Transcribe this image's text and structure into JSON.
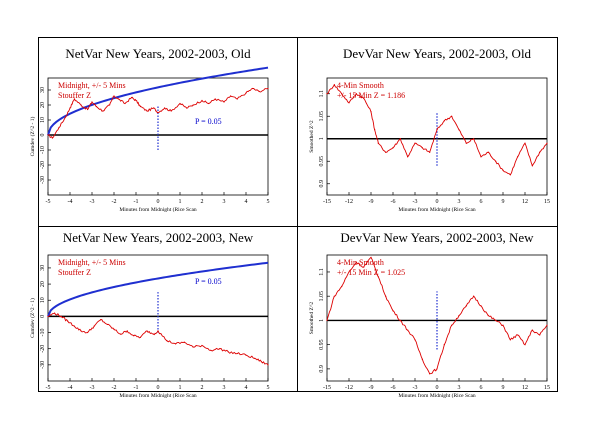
{
  "colors": {
    "data": "#dd0000",
    "envelope": "#1f2fd0",
    "marker": "#1f2fd0",
    "baseline": "#000000",
    "annotation_red": "#cc0000",
    "annotation_blue": "#0000cc"
  },
  "chart_data": [
    {
      "type": "line",
      "title": "NetVar New Years, 2002-2003, Old",
      "xlabel": "Minutes from Midnight (Rice Scan",
      "ylabel": "Cumdev (Z^2 - 1)",
      "xlim": [
        -5,
        5
      ],
      "ylim": [
        -40,
        38
      ],
      "xticks": [
        -5,
        -4,
        -3,
        -2,
        -1,
        0,
        1,
        2,
        3,
        4,
        5
      ],
      "yticks": [
        -30,
        -20,
        -10,
        0,
        10,
        20,
        30
      ],
      "annotations": [
        "Midnight, +/- 5 Mins",
        "Stouffer Z"
      ],
      "p_label": "P = 0.05",
      "envelope_coef": 14.2,
      "midnight_marker": [
        -10,
        20
      ],
      "series": [
        {
          "x": [
            -5,
            -4.8,
            -4.5,
            -4.2,
            -4,
            -3.8,
            -3.5,
            -3.2,
            -3,
            -2.8,
            -2.5,
            -2.2,
            -2,
            -1.8,
            -1.5,
            -1.2,
            -1,
            -0.8,
            -0.5,
            -0.2,
            0,
            0.3,
            0.6,
            1,
            1.3,
            1.6,
            2,
            2.3,
            2.6,
            3,
            3.3,
            3.6,
            4,
            4.3,
            4.6,
            5
          ],
          "values": [
            0,
            -2,
            5,
            12,
            18,
            24,
            20,
            17,
            22,
            19,
            16,
            20,
            26,
            24,
            21,
            25,
            23,
            19,
            16,
            18,
            15,
            18,
            16,
            21,
            18,
            20,
            23,
            21,
            24,
            22,
            26,
            24,
            28,
            31,
            29,
            31
          ]
        }
      ]
    },
    {
      "type": "line",
      "title": "DevVar New Years, 2002-2003, Old",
      "xlabel": "Minutes from Midnight (Rice Scan",
      "ylabel": "Smoothed Z^2",
      "xlim": [
        -15,
        15
      ],
      "ylim": [
        0.875,
        1.135
      ],
      "xticks": [
        -15,
        -12,
        -9,
        -6,
        -3,
        0,
        3,
        6,
        9,
        12,
        15
      ],
      "yticks": [
        0.9,
        0.95,
        1,
        1.05,
        1.1
      ],
      "annotations": [
        "4-Min Smooth",
        "+/- 15 Min Z = 1.186"
      ],
      "baseline": 1,
      "midnight_marker": [
        0.94,
        1.06
      ],
      "series": [
        {
          "x": [
            -15,
            -14,
            -13,
            -12,
            -11,
            -10,
            -9,
            -8.5,
            -8,
            -7,
            -6,
            -5,
            -4,
            -3,
            -2,
            -1,
            0,
            1,
            2,
            3,
            4,
            5,
            6,
            7,
            8,
            9,
            10,
            11,
            12,
            13,
            14,
            15
          ],
          "values": [
            1.1,
            1.12,
            1.1,
            1.08,
            1.1,
            1.09,
            1.06,
            1.02,
            0.99,
            0.97,
            0.98,
            1.0,
            0.96,
            0.99,
            0.98,
            0.97,
            1.02,
            1.04,
            1.05,
            1.02,
            0.99,
            1.0,
            0.96,
            0.97,
            0.95,
            0.93,
            0.92,
            0.96,
            0.99,
            0.94,
            0.97,
            0.99
          ]
        }
      ]
    },
    {
      "type": "line",
      "title": "NetVar New Years, 2002-2003, New",
      "xlabel": "Minutes from Midnight (Rice Scan",
      "ylabel": "Cumdev (Z^2 - 1)",
      "xlim": [
        -5,
        5
      ],
      "ylim": [
        -40,
        38
      ],
      "xticks": [
        -5,
        -4,
        -3,
        -2,
        -1,
        0,
        1,
        2,
        3,
        4,
        5
      ],
      "yticks": [
        -30,
        -20,
        -10,
        0,
        10,
        20,
        30
      ],
      "annotations": [
        "Midnight, +/- 5 Mins",
        "Stouffer Z"
      ],
      "p_label": "P = 0.05",
      "envelope_coef": 10.5,
      "midnight_marker": [
        -10,
        15
      ],
      "series": [
        {
          "x": [
            -5,
            -4.7,
            -4.4,
            -4.1,
            -3.8,
            -3.5,
            -3.2,
            -2.9,
            -2.6,
            -2.3,
            -2,
            -1.7,
            -1.4,
            -1.1,
            -0.8,
            -0.5,
            -0.2,
            0,
            0.4,
            0.8,
            1.2,
            1.6,
            2,
            2.4,
            2.8,
            3.2,
            3.6,
            4,
            4.4,
            4.7,
            5
          ],
          "values": [
            0,
            2,
            0,
            -3,
            -6,
            -9,
            -10,
            -6,
            -2,
            -5,
            -8,
            -11,
            -9,
            -12,
            -13,
            -9,
            -11,
            -9,
            -15,
            -17,
            -16,
            -19,
            -18,
            -21,
            -20,
            -22,
            -23,
            -24,
            -26,
            -28,
            -30
          ]
        }
      ]
    },
    {
      "type": "line",
      "title": "DevVar New Years, 2002-2003, New",
      "xlabel": "Minutes from Midnight (Rice Scan",
      "ylabel": "Smoothed Z^2",
      "xlim": [
        -15,
        15
      ],
      "ylim": [
        0.875,
        1.135
      ],
      "xticks": [
        -15,
        -12,
        -9,
        -6,
        -3,
        0,
        3,
        6,
        9,
        12,
        15
      ],
      "yticks": [
        0.9,
        0.95,
        1,
        1.05,
        1.1
      ],
      "annotations": [
        "4-Min Smooth",
        "+/- 15 Min Z = 1.025"
      ],
      "baseline": 1,
      "midnight_marker": [
        0.94,
        1.06
      ],
      "series": [
        {
          "x": [
            -15,
            -14,
            -13,
            -12,
            -11,
            -10,
            -9,
            -8,
            -7,
            -6,
            -5,
            -4,
            -3,
            -2,
            -1,
            0,
            1,
            2,
            3,
            4,
            5,
            6,
            7,
            8,
            9,
            10,
            11,
            12,
            13,
            14,
            15
          ],
          "values": [
            1.0,
            1.05,
            1.07,
            1.1,
            1.12,
            1.11,
            1.13,
            1.09,
            1.05,
            1.02,
            1.0,
            0.98,
            0.96,
            0.92,
            0.89,
            0.9,
            0.95,
            0.99,
            1.01,
            1.03,
            1.05,
            1.03,
            1.01,
            1.0,
            0.99,
            0.96,
            0.97,
            0.95,
            0.98,
            0.97,
            0.99
          ]
        }
      ]
    }
  ]
}
